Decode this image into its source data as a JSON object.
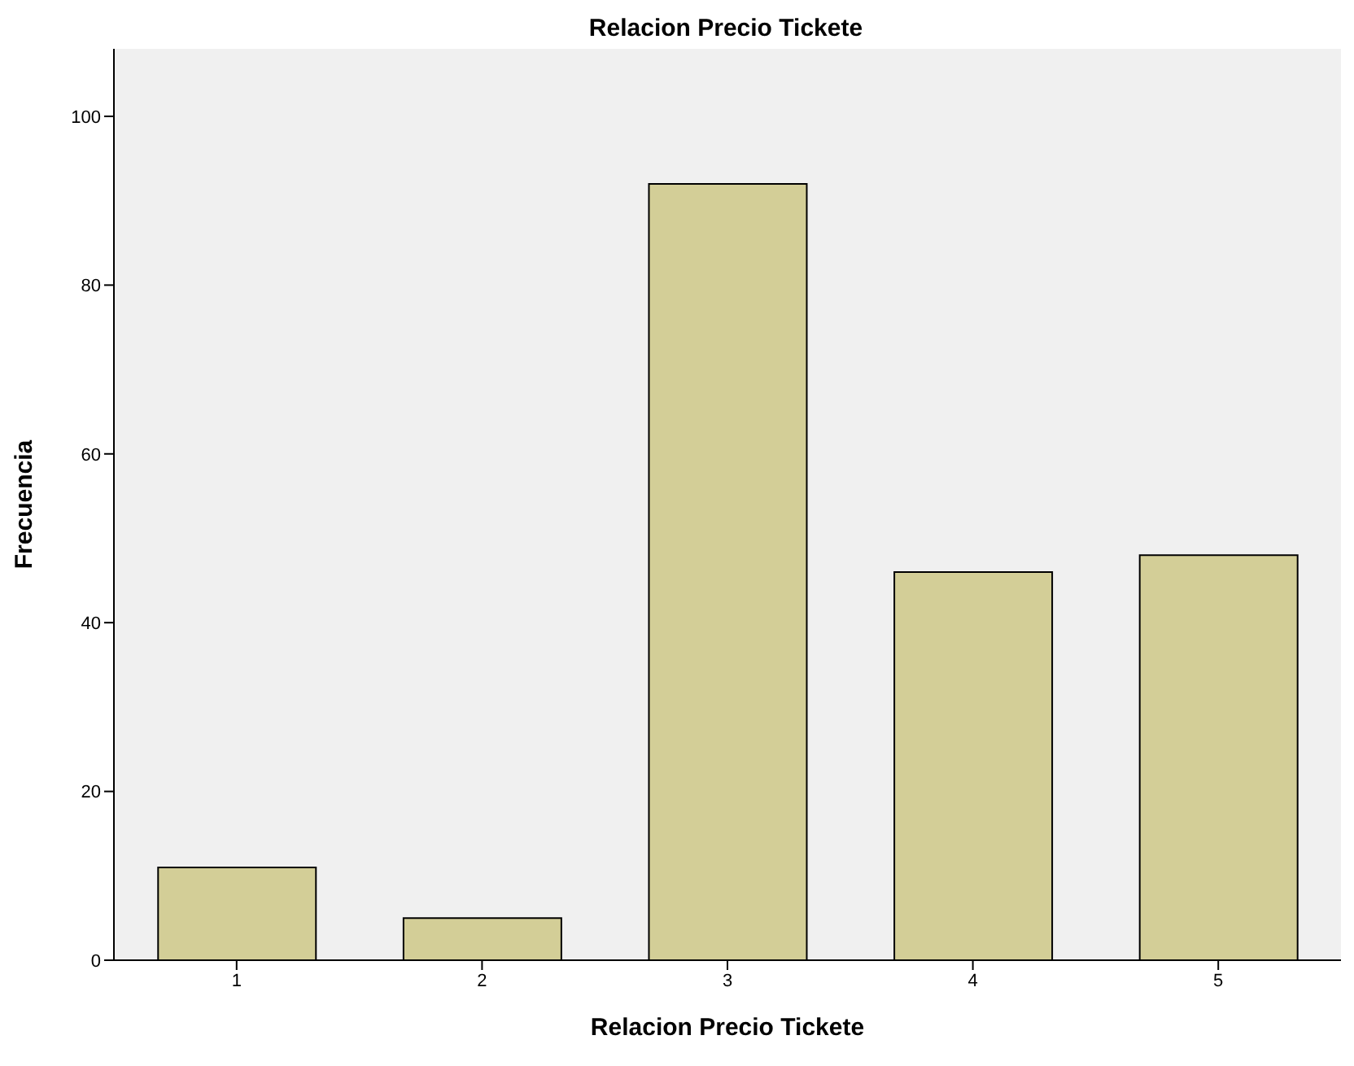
{
  "chart_data": {
    "type": "bar",
    "title": "Relacion Precio Tickete",
    "xlabel": "Relacion Precio Tickete",
    "ylabel": "Frecuencia",
    "categories": [
      "1",
      "2",
      "3",
      "4",
      "5"
    ],
    "values": [
      11,
      5,
      92,
      46,
      48
    ],
    "color": "#d3ce97",
    "ylim": [
      0,
      108
    ],
    "yticks": [
      0,
      20,
      40,
      60,
      80,
      100
    ]
  }
}
